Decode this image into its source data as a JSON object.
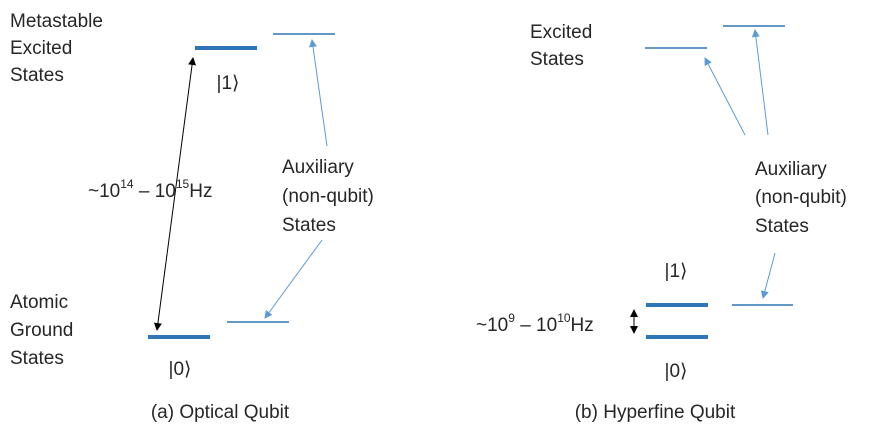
{
  "panels": [
    {
      "upper_label": [
        "Metastable",
        "Excited",
        "States"
      ],
      "upper_ket": "|1⟩",
      "frequency": {
        "prefix": "~10",
        "exp_low": "14",
        "middle": " – 10",
        "exp_high": "15",
        "unit": "Hz"
      },
      "auxiliary_label": [
        "Auxiliary",
        "(non-qubit)",
        "States"
      ],
      "lower_label": [
        "Atomic",
        "Ground",
        "States"
      ],
      "lower_ket": "|0⟩",
      "caption": "(a) Optical Qubit"
    },
    {
      "upper_label": [
        "Excited",
        "States"
      ],
      "upper_ket": "|1⟩",
      "frequency": {
        "prefix": "~10",
        "exp_low": "9",
        "middle": " – 10",
        "exp_high": "10",
        "unit": "Hz"
      },
      "auxiliary_label": [
        "Auxiliary",
        "(non-qubit)",
        "States"
      ],
      "lower_ket": "|0⟩",
      "caption": "(b) Hyperfine Qubit"
    }
  ]
}
